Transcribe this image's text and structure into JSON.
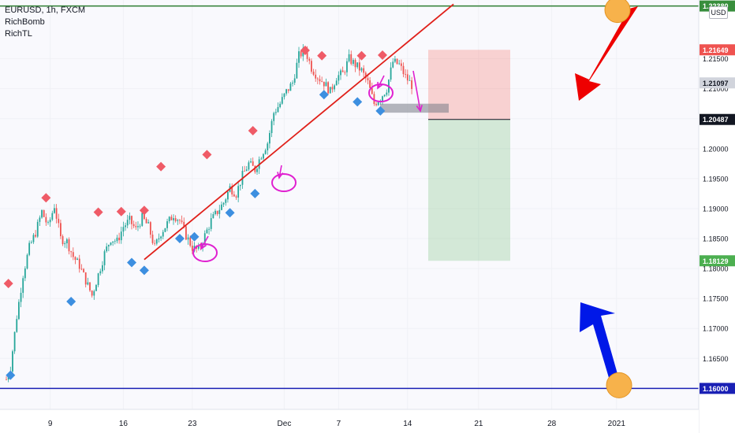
{
  "legend": {
    "symbol": "EURUSD, 1h, FXCM",
    "indicators": [
      "RichBomb",
      "RichTL"
    ]
  },
  "currency_button": "USD",
  "chart_data": {
    "type": "candlestick",
    "symbol": "EURUSD",
    "timeframe": "1h",
    "x_tick_labels": [
      "9",
      "16",
      "23",
      "Dec",
      "7",
      "14",
      "21",
      "28",
      "2021"
    ],
    "y_tick_labels": [
      "1.16500",
      "1.17000",
      "1.17500",
      "1.18000",
      "1.18500",
      "1.19000",
      "1.19500",
      "1.20000",
      "1.20500",
      "1.21000",
      "1.21500"
    ],
    "ylim": [
      1.1565,
      1.2248
    ],
    "price_close_path": [
      [
        0,
        1.1615
      ],
      [
        2,
        1.1635
      ],
      [
        5,
        1.172
      ],
      [
        8,
        1.179
      ],
      [
        11,
        1.1835
      ],
      [
        14,
        1.186
      ],
      [
        17,
        1.1895
      ],
      [
        20,
        1.187
      ],
      [
        23,
        1.1905
      ],
      [
        26,
        1.185
      ],
      [
        29,
        1.1845
      ],
      [
        32,
        1.182
      ],
      [
        35,
        1.1805
      ],
      [
        38,
        1.178
      ],
      [
        41,
        1.1755
      ],
      [
        44,
        1.179
      ],
      [
        47,
        1.1825
      ],
      [
        50,
        1.185
      ],
      [
        53,
        1.1845
      ],
      [
        56,
        1.187
      ],
      [
        59,
        1.188
      ],
      [
        62,
        1.1865
      ],
      [
        65,
        1.1885
      ],
      [
        68,
        1.187
      ],
      [
        71,
        1.1835
      ],
      [
        74,
        1.186
      ],
      [
        77,
        1.1875
      ],
      [
        80,
        1.189
      ],
      [
        83,
        1.188
      ],
      [
        86,
        1.1855
      ],
      [
        89,
        1.1835
      ],
      [
        92,
        1.183
      ],
      [
        95,
        1.1855
      ],
      [
        98,
        1.188
      ],
      [
        101,
        1.1895
      ],
      [
        104,
        1.191
      ],
      [
        107,
        1.1935
      ],
      [
        110,
        1.1925
      ],
      [
        113,
        1.1955
      ],
      [
        116,
        1.1975
      ],
      [
        119,
        1.1965
      ],
      [
        122,
        1.199
      ],
      [
        125,
        1.201
      ],
      [
        128,
        1.206
      ],
      [
        131,
        1.2075
      ],
      [
        134,
        1.2095
      ],
      [
        137,
        1.211
      ],
      [
        140,
        1.2155
      ],
      [
        143,
        1.2165
      ],
      [
        146,
        1.2135
      ],
      [
        149,
        1.212
      ],
      [
        152,
        1.211
      ],
      [
        155,
        1.2095
      ],
      [
        158,
        1.212
      ],
      [
        161,
        1.2125
      ],
      [
        164,
        1.215
      ],
      [
        167,
        1.214
      ],
      [
        170,
        1.213
      ],
      [
        173,
        1.211
      ],
      [
        176,
        1.2075
      ],
      [
        179,
        1.2085
      ],
      [
        182,
        1.21
      ],
      [
        185,
        1.2145
      ],
      [
        188,
        1.214
      ],
      [
        191,
        1.212
      ],
      [
        194,
        1.2106
      ]
    ],
    "sell_signals": [
      [
        1,
        1.1775
      ],
      [
        19,
        1.1918
      ],
      [
        44,
        1.1894
      ],
      [
        55,
        1.1895
      ],
      [
        66,
        1.1897
      ],
      [
        74,
        1.197
      ],
      [
        96,
        1.199
      ],
      [
        118,
        1.203
      ],
      [
        143,
        1.2164
      ],
      [
        151,
        1.2155
      ],
      [
        170,
        1.2155
      ],
      [
        180,
        1.2156
      ]
    ],
    "buy_signals": [
      [
        2,
        1.1622
      ],
      [
        31,
        1.1745
      ],
      [
        60,
        1.181
      ],
      [
        66,
        1.1797
      ],
      [
        83,
        1.185
      ],
      [
        90,
        1.1853
      ],
      [
        107,
        1.1893
      ],
      [
        119,
        1.1925
      ],
      [
        152,
        1.209
      ],
      [
        168,
        1.2078
      ],
      [
        179,
        1.2063
      ]
    ],
    "trendline": {
      "from": [
        66,
        1.1815
      ],
      "to": [
        214,
        1.2241
      ]
    },
    "levels": {
      "top": 1.2238,
      "bottom": 1.16,
      "grey_zone": [
        1.206,
        1.2075
      ]
    },
    "position": {
      "entry": 1.20487,
      "stop": 1.21649,
      "target": 1.18129
    },
    "price_labels": [
      {
        "value": 1.2238,
        "text": "1.22380",
        "color": "#388e3c"
      },
      {
        "value": 1.21649,
        "text": "1.21649",
        "color": "#ef5350"
      },
      {
        "value": 1.21097,
        "text": "1.21097",
        "color": "#d1d4dc"
      },
      {
        "value": 1.20487,
        "text": "1.20487",
        "color": "#131722"
      },
      {
        "value": 1.18129,
        "text": "1.18129",
        "color": "#4caf50"
      },
      {
        "value": 1.16,
        "text": "1.16000",
        "color": "#1a20b5"
      }
    ],
    "colors": {
      "up": "#26a69a",
      "down": "#ef5350",
      "trendline": "#e0201a",
      "sell_marker": "#ef5b67",
      "buy_marker": "#3d8fe0",
      "annotation": "#e020d0",
      "red_arrow": "#ee0000",
      "blue_arrow": "#0018e8",
      "orange_circle": "#f7b24b"
    }
  }
}
